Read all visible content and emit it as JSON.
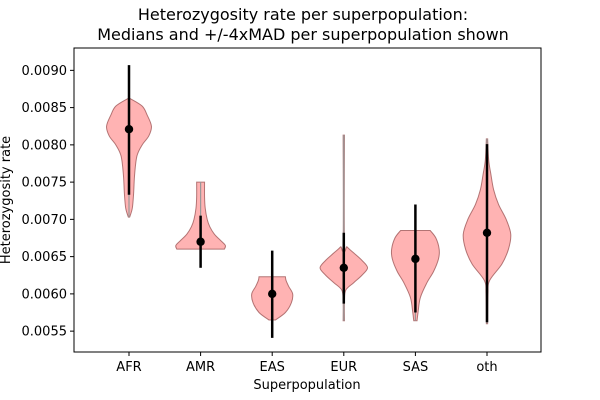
{
  "chart_data": {
    "type": "violin",
    "title": [
      "Heterozygosity rate per superpopulation:",
      "Medians and +/-4xMAD per superpopulation shown"
    ],
    "xlabel": "Superpopulation",
    "ylabel": "Heterozygosity rate",
    "ylim": [
      0.00522,
      0.0093
    ],
    "y_ticks": [
      0.0055,
      0.006,
      0.0065,
      0.007,
      0.0075,
      0.008,
      0.0085,
      0.009
    ],
    "y_tick_labels": [
      "0.0055",
      "0.0060",
      "0.0065",
      "0.0070",
      "0.0075",
      "0.0080",
      "0.0085",
      "0.0090"
    ],
    "categories": [
      "AFR",
      "AMR",
      "EAS",
      "EUR",
      "SAS",
      "oth"
    ],
    "violin_color": "#ff9999",
    "violin_edge_color": "#a05a5a",
    "violins": [
      {
        "name": "AFR",
        "min": 0.00703,
        "max": 0.00862,
        "median": 0.00821,
        "lower_4mad": 0.00733,
        "upper_4mad": 0.00907,
        "profile": [
          [
            0.00703,
            0.02
          ],
          [
            0.00715,
            0.1
          ],
          [
            0.00735,
            0.14
          ],
          [
            0.0076,
            0.17
          ],
          [
            0.00785,
            0.24
          ],
          [
            0.008,
            0.4
          ],
          [
            0.00812,
            0.6
          ],
          [
            0.00825,
            0.68
          ],
          [
            0.0084,
            0.55
          ],
          [
            0.00852,
            0.4
          ],
          [
            0.00862,
            0.04
          ]
        ]
      },
      {
        "name": "AMR",
        "min": 0.0066,
        "max": 0.0075,
        "median": 0.0067,
        "lower_4mad": 0.00635,
        "upper_4mad": 0.00705,
        "profile": [
          [
            0.0066,
            0.72
          ],
          [
            0.00665,
            0.75
          ],
          [
            0.00672,
            0.6
          ],
          [
            0.0068,
            0.42
          ],
          [
            0.0069,
            0.28
          ],
          [
            0.007,
            0.2
          ],
          [
            0.00715,
            0.14
          ],
          [
            0.0073,
            0.12
          ],
          [
            0.0075,
            0.12
          ]
        ]
      },
      {
        "name": "EAS",
        "min": 0.00565,
        "max": 0.00623,
        "median": 0.006,
        "lower_4mad": 0.00541,
        "upper_4mad": 0.00658,
        "profile": [
          [
            0.00565,
            0.1
          ],
          [
            0.00575,
            0.4
          ],
          [
            0.00588,
            0.58
          ],
          [
            0.006,
            0.62
          ],
          [
            0.0061,
            0.5
          ],
          [
            0.00618,
            0.42
          ],
          [
            0.00623,
            0.4
          ]
        ]
      },
      {
        "name": "EUR",
        "min": 0.00564,
        "max": 0.00813,
        "median": 0.00635,
        "lower_4mad": 0.00587,
        "upper_4mad": 0.00682,
        "profile": [
          [
            0.00564,
            0.02
          ],
          [
            0.0059,
            0.02
          ],
          [
            0.00605,
            0.06
          ],
          [
            0.00615,
            0.3
          ],
          [
            0.00625,
            0.55
          ],
          [
            0.00635,
            0.72
          ],
          [
            0.00645,
            0.55
          ],
          [
            0.00655,
            0.3
          ],
          [
            0.00663,
            0.1
          ],
          [
            0.0067,
            0.02
          ],
          [
            0.00813,
            0.02
          ]
        ]
      },
      {
        "name": "SAS",
        "min": 0.00564,
        "max": 0.00685,
        "median": 0.00647,
        "lower_4mad": 0.00575,
        "upper_4mad": 0.0072,
        "profile": [
          [
            0.00564,
            0.05
          ],
          [
            0.00575,
            0.08
          ],
          [
            0.00595,
            0.15
          ],
          [
            0.00615,
            0.35
          ],
          [
            0.0063,
            0.55
          ],
          [
            0.00647,
            0.7
          ],
          [
            0.0066,
            0.72
          ],
          [
            0.00675,
            0.62
          ],
          [
            0.00685,
            0.45
          ]
        ]
      },
      {
        "name": "oth",
        "min": 0.0056,
        "max": 0.00808,
        "median": 0.00682,
        "lower_4mad": 0.00562,
        "upper_4mad": 0.00801,
        "profile": [
          [
            0.0056,
            0.02
          ],
          [
            0.006,
            0.03
          ],
          [
            0.00618,
            0.08
          ],
          [
            0.0064,
            0.45
          ],
          [
            0.0066,
            0.65
          ],
          [
            0.0068,
            0.72
          ],
          [
            0.007,
            0.58
          ],
          [
            0.0072,
            0.35
          ],
          [
            0.0074,
            0.2
          ],
          [
            0.0076,
            0.12
          ],
          [
            0.0078,
            0.05
          ],
          [
            0.00808,
            0.02
          ]
        ]
      }
    ]
  }
}
